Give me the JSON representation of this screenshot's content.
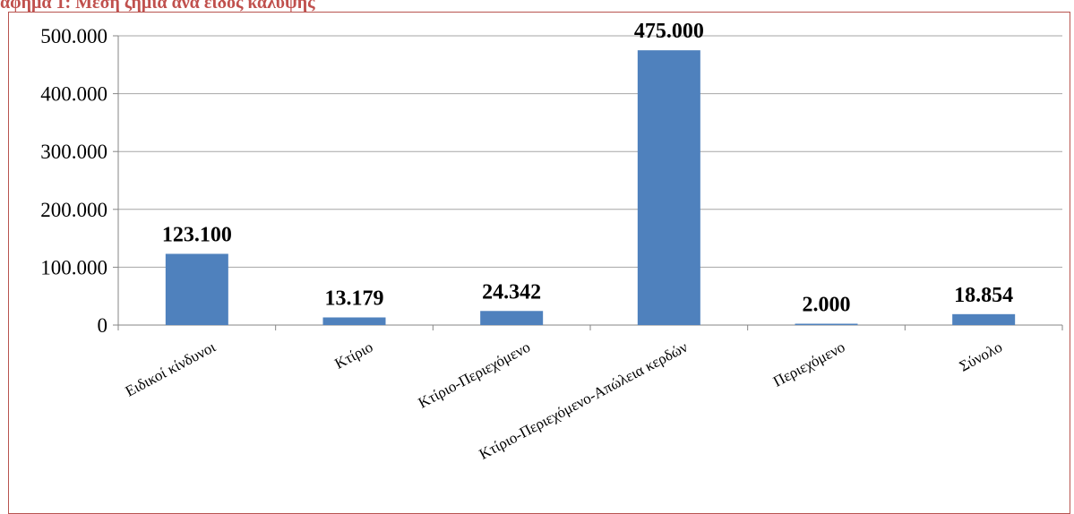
{
  "header": {
    "title": "αφημα 1: Μεση ζημια ανα ειδος καλυψης"
  },
  "colors": {
    "bar": "#4F81BD",
    "grid": "#A6A6A6",
    "frame": "#B85450",
    "title": "#C0504D"
  },
  "chart_data": {
    "type": "bar",
    "title": "",
    "xlabel": "",
    "ylabel": "",
    "ylim": [
      0,
      500000
    ],
    "yticks": [
      0,
      100000,
      200000,
      300000,
      400000,
      500000
    ],
    "ytick_labels": [
      "0",
      "100.000",
      "200.000",
      "300.000",
      "400.000",
      "500.000"
    ],
    "grid": true,
    "legend": "none",
    "categories": [
      "Ειδικοί κίνδυνοι",
      "Κτίριο",
      "Κτίριο-Περιεχόμενο",
      "Κτίριο-Περιεχόμενο-Απώλεια κερδών",
      "Περιεχόμενο",
      "Σύνολο"
    ],
    "values": [
      123100,
      13179,
      24342,
      475000,
      2000,
      18854
    ],
    "data_labels": [
      "123.100",
      "13.179",
      "24.342",
      "475.000",
      "2.000",
      "18.854"
    ]
  }
}
